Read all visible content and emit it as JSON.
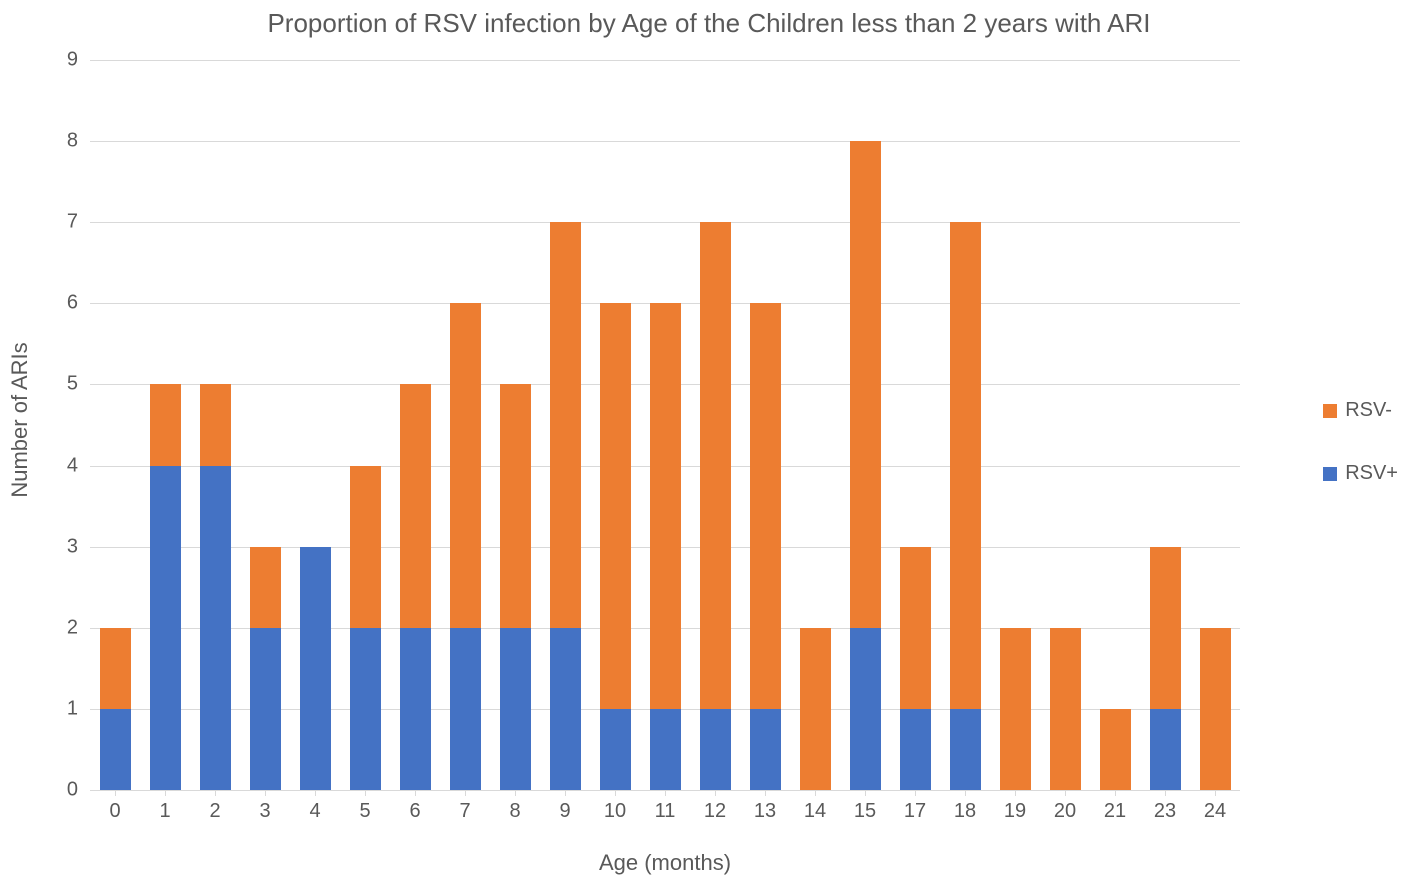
{
  "chart": {
    "type": "bar-stacked",
    "title": "Proportion of RSV infection by Age of the Children less than 2 years with ARI",
    "title_fontsize": 26,
    "title_color": "#595959",
    "xlabel": "Age (months)",
    "ylabel": "Number of ARIs",
    "label_fontsize": 22,
    "label_color": "#595959",
    "tick_fontsize": 20,
    "tick_color": "#595959",
    "ylim": [
      0,
      9
    ],
    "ytick_step": 1,
    "yticks": [
      0,
      1,
      2,
      3,
      4,
      5,
      6,
      7,
      8,
      9
    ],
    "gridline_color": "#d9d9d9",
    "background_color": "#ffffff",
    "bar_width_ratio": 0.62,
    "categories": [
      "0",
      "1",
      "2",
      "3",
      "4",
      "5",
      "6",
      "7",
      "8",
      "9",
      "10",
      "11",
      "12",
      "13",
      "14",
      "15",
      "17",
      "18",
      "19",
      "20",
      "21",
      "23",
      "24"
    ],
    "series": [
      {
        "name": "RSV+",
        "color": "#4472c4",
        "values": [
          1,
          4,
          4,
          2,
          3,
          2,
          2,
          2,
          2,
          2,
          1,
          1,
          1,
          1,
          0,
          2,
          1,
          1,
          0,
          0,
          0,
          1,
          0
        ]
      },
      {
        "name": "RSV-",
        "color": "#ed7d31",
        "values": [
          1,
          1,
          1,
          1,
          0,
          2,
          3,
          4,
          3,
          5,
          5,
          5,
          6,
          5,
          2,
          6,
          2,
          6,
          2,
          2,
          1,
          2,
          2
        ]
      }
    ],
    "legend": {
      "position": "right",
      "items": [
        {
          "label": "RSV-",
          "color": "#ed7d31"
        },
        {
          "label": "RSV+",
          "color": "#4472c4"
        }
      ],
      "fontsize": 20,
      "label_color": "#595959"
    }
  }
}
